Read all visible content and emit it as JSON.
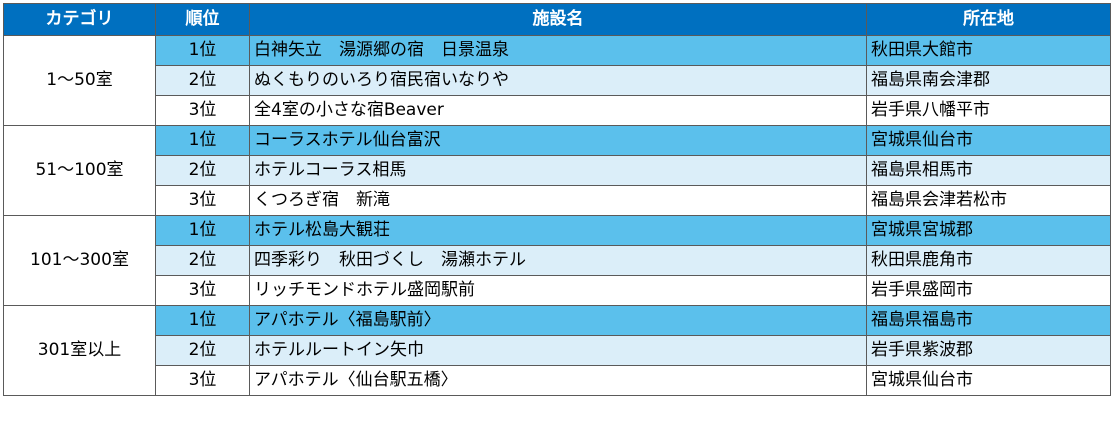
{
  "headers": {
    "category": "カテゴリ",
    "rank": "順位",
    "facility": "施設名",
    "location": "所在地"
  },
  "groups": [
    {
      "category": "1～50室",
      "rows": [
        {
          "rank": "1位",
          "name": "白神矢立　湯源郷の宿　日景温泉",
          "location": "秋田県大館市"
        },
        {
          "rank": "2位",
          "name": "ぬくもりのいろり宿民宿いなりや",
          "location": "福島県南会津郡"
        },
        {
          "rank": "3位",
          "name": "全4室の小さな宿Beaver",
          "location": "岩手県八幡平市"
        }
      ]
    },
    {
      "category": "51～100室",
      "rows": [
        {
          "rank": "1位",
          "name": "コーラスホテル仙台富沢",
          "location": "宮城県仙台市"
        },
        {
          "rank": "2位",
          "name": "ホテルコーラス相馬",
          "location": "福島県相馬市"
        },
        {
          "rank": "3位",
          "name": "くつろぎ宿　新滝",
          "location": "福島県会津若松市"
        }
      ]
    },
    {
      "category": "101～300室",
      "rows": [
        {
          "rank": "1位",
          "name": "ホテル松島大観荘",
          "location": "宮城県宮城郡"
        },
        {
          "rank": "2位",
          "name": "四季彩り　秋田づくし　湯瀬ホテル",
          "location": "秋田県鹿角市"
        },
        {
          "rank": "3位",
          "name": "リッチモンドホテル盛岡駅前",
          "location": "岩手県盛岡市"
        }
      ]
    },
    {
      "category": "301室以上",
      "rows": [
        {
          "rank": "1位",
          "name": "アパホテル〈福島駅前〉",
          "location": "福島県福島市"
        },
        {
          "rank": "2位",
          "name": "ホテルルートイン矢巾",
          "location": "岩手県紫波郡"
        },
        {
          "rank": "3位",
          "name": "アパホテル〈仙台駅五橋〉",
          "location": "宮城県仙台市"
        }
      ]
    }
  ],
  "colors": {
    "header_bg": "#0070c0",
    "rank1_bg": "#5bc0ec",
    "rank2_bg": "#dbeef9",
    "rank3_bg": "#ffffff"
  }
}
